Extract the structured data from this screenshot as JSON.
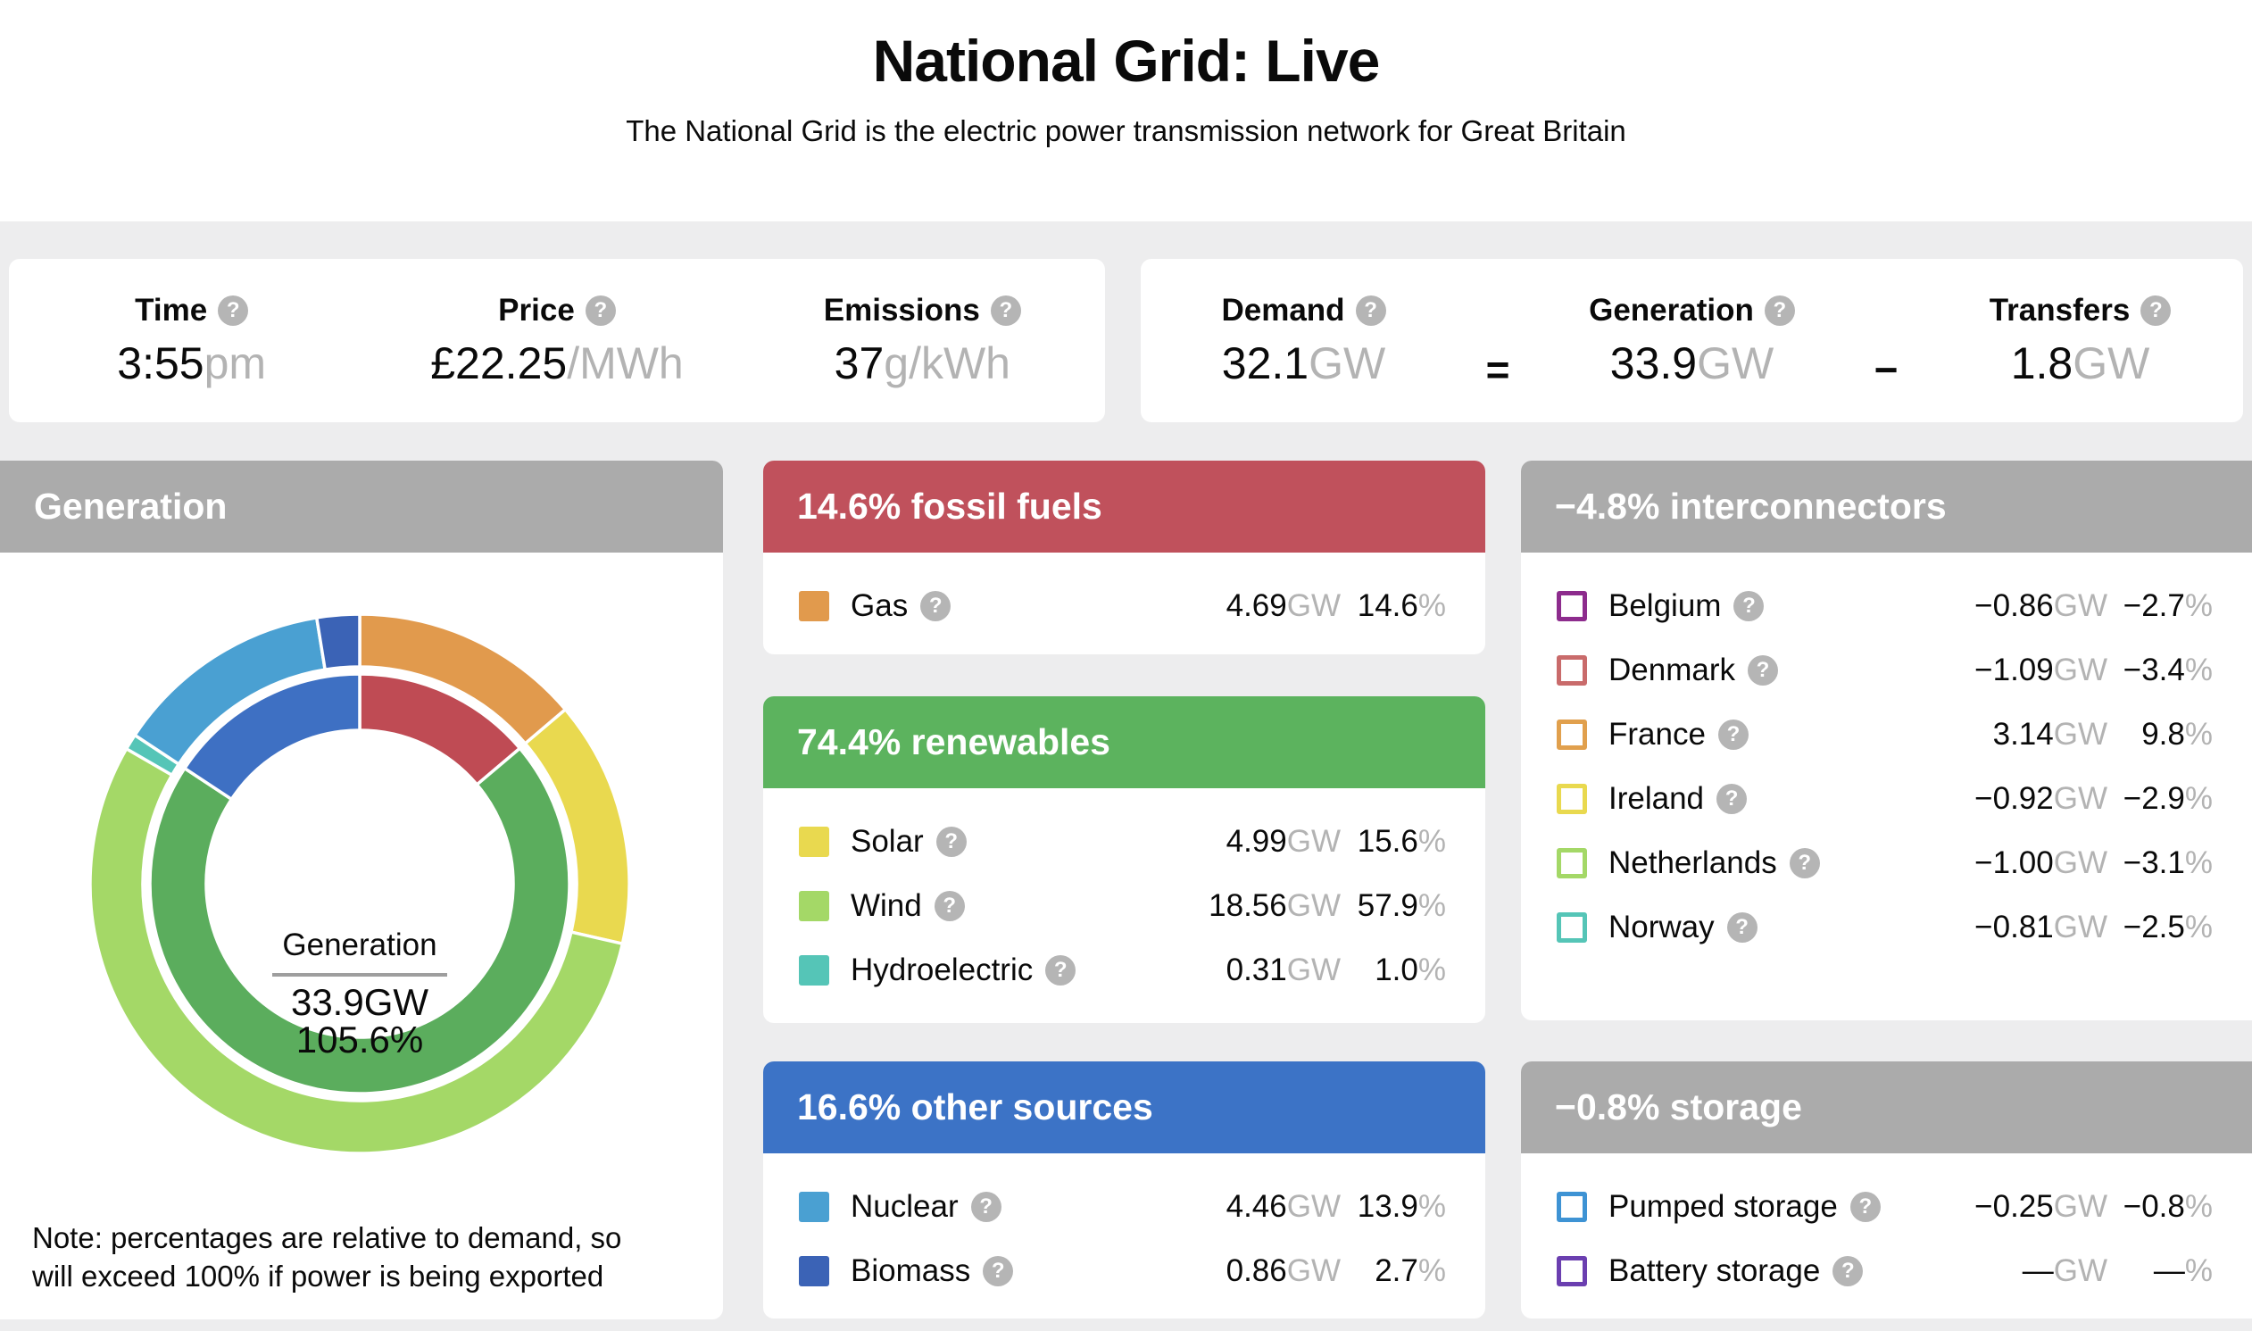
{
  "header": {
    "title": "National Grid: Live",
    "subtitle": "The National Grid is the electric power transmission network for Great Britain"
  },
  "glyphs": {
    "help": "?"
  },
  "units": {
    "gw": "GW",
    "pct": "%"
  },
  "stats_left": [
    {
      "label": "Time",
      "value": "3:55",
      "unit": "pm"
    },
    {
      "label": "Price",
      "value": "£22.25",
      "unit": "/MWh"
    },
    {
      "label": "Emissions",
      "value": "37",
      "unit": "g/kWh"
    }
  ],
  "stats_right": {
    "op_equals": "=",
    "op_minus": "−",
    "items": [
      {
        "label": "Demand",
        "value": "32.1",
        "unit": "GW"
      },
      {
        "label": "Generation",
        "value": "33.9",
        "unit": "GW"
      },
      {
        "label": "Transfers",
        "value": "1.8",
        "unit": "GW"
      }
    ]
  },
  "generation_panel": {
    "title": "Generation",
    "note_line1": "Note: percentages are relative to demand, so will",
    "note_line2": "exceed 100% if power is being exported"
  },
  "chart_data": {
    "type": "pie",
    "variant": "two-ring donut, starts at 12 o'clock, clockwise, normalized to ring total",
    "title": "Generation",
    "center_label": "Generation",
    "center_value": "33.9GW",
    "center_pct": "105.6%",
    "inner_ring": [
      {
        "name": "fossil fuels",
        "pct": 14.6,
        "color": "#bf4b54"
      },
      {
        "name": "renewables",
        "pct": 74.4,
        "color": "#5bad5d"
      },
      {
        "name": "other sources",
        "pct": 16.6,
        "color": "#3e70c3"
      }
    ],
    "outer_ring": [
      {
        "name": "Gas",
        "gw": 4.69,
        "pct": 14.6,
        "color": "#e19a4d"
      },
      {
        "name": "Solar",
        "gw": 4.99,
        "pct": 15.6,
        "color": "#e9d94f"
      },
      {
        "name": "Wind",
        "gw": 18.56,
        "pct": 57.9,
        "color": "#a4d867"
      },
      {
        "name": "Hydroelectric",
        "gw": 0.31,
        "pct": 1.0,
        "color": "#55c5b7"
      },
      {
        "name": "Nuclear",
        "gw": 4.46,
        "pct": 13.9,
        "color": "#4aa0d2"
      },
      {
        "name": "Biomass",
        "gw": 0.86,
        "pct": 2.7,
        "color": "#3b63b6"
      }
    ]
  },
  "groups": [
    {
      "header": "14.6% fossil fuels",
      "color": "#c0515c",
      "rows": [
        {
          "name": "Gas",
          "color": "#e19a4d",
          "gw": "4.69",
          "pct": "14.6"
        }
      ]
    },
    {
      "header": "74.4% renewables",
      "color": "#5cb35e",
      "rows": [
        {
          "name": "Solar",
          "color": "#e9d94f",
          "gw": "4.99",
          "pct": "15.6"
        },
        {
          "name": "Wind",
          "color": "#a4d867",
          "gw": "18.56",
          "pct": "57.9"
        },
        {
          "name": "Hydroelectric",
          "color": "#55c5b7",
          "gw": "0.31",
          "pct": "1.0"
        }
      ]
    },
    {
      "header": "16.6% other sources",
      "color": "#3c73c6",
      "rows": [
        {
          "name": "Nuclear",
          "color": "#4aa0d2",
          "gw": "4.46",
          "pct": "13.9"
        },
        {
          "name": "Biomass",
          "color": "#3b63b6",
          "gw": "0.86",
          "pct": "2.7"
        }
      ]
    }
  ],
  "interconnectors": {
    "header": "−4.8% interconnectors",
    "color": "#ababab",
    "rows": [
      {
        "name": "Belgium",
        "color": "#8d2c8d",
        "gw": "−0.86",
        "pct": "−2.7"
      },
      {
        "name": "Denmark",
        "color": "#c96b6b",
        "gw": "−1.09",
        "pct": "−3.4"
      },
      {
        "name": "France",
        "color": "#e1a04d",
        "gw": "3.14",
        "pct": "9.8"
      },
      {
        "name": "Ireland",
        "color": "#e9d94f",
        "gw": "−0.92",
        "pct": "−2.9"
      },
      {
        "name": "Netherlands",
        "color": "#a4d867",
        "gw": "−1.00",
        "pct": "−3.1"
      },
      {
        "name": "Norway",
        "color": "#55c5b7",
        "gw": "−0.81",
        "pct": "−2.5"
      }
    ]
  },
  "storage": {
    "header": "−0.8% storage",
    "color": "#ababab",
    "rows": [
      {
        "name": "Pumped storage",
        "color": "#3e93d4",
        "gw": "−0.25",
        "pct": "−0.8"
      },
      {
        "name": "Battery storage",
        "color": "#6b3fb0",
        "gw": "—",
        "pct": "—"
      }
    ]
  }
}
